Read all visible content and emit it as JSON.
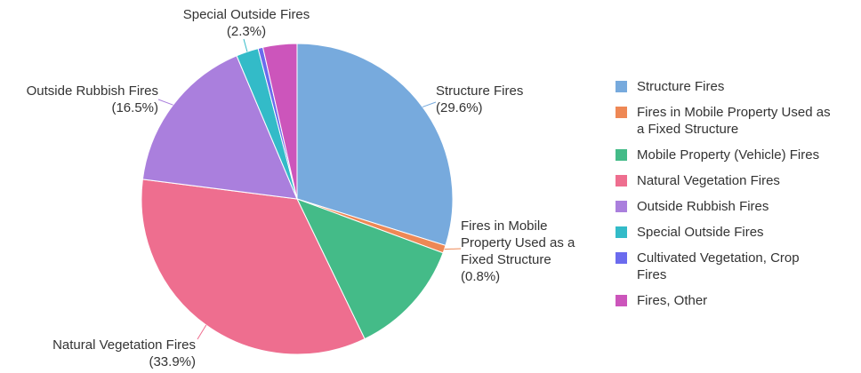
{
  "chart_data": {
    "type": "pie",
    "title": "",
    "series": [
      {
        "name": "Structure Fires",
        "label_lines": [
          "Structure Fires",
          "(29.6%)"
        ],
        "value": 29.6,
        "color": "#77aadd"
      },
      {
        "name": "Fires in Mobile Property Used as a Fixed Structure",
        "label_lines": [
          "Fires in Mobile",
          "Property Used as a",
          "Fixed Structure",
          "(0.8%)"
        ],
        "value": 0.8,
        "color": "#ee8855"
      },
      {
        "name": "Mobile Property (Vehicle) Fires",
        "label_lines": [],
        "value": 12.1,
        "color": "#44bb88"
      },
      {
        "name": "Natural Vegetation Fires",
        "label_lines": [
          "Natural Vegetation Fires",
          "(33.9%)"
        ],
        "value": 33.9,
        "color": "#ee6e8f"
      },
      {
        "name": "Outside Rubbish Fires",
        "label_lines": [
          "Outside Rubbish Fires",
          "(16.5%)"
        ],
        "value": 16.5,
        "color": "#aa7fdd"
      },
      {
        "name": "Special Outside Fires",
        "label_lines": [
          "Special Outside Fires",
          "(2.3%)"
        ],
        "value": 2.3,
        "color": "#33bbc8"
      },
      {
        "name": "Cultivated Vegetation, Crop Fires",
        "label_lines": [],
        "value": 0.5,
        "color": "#6b6bee"
      },
      {
        "name": "Fires, Other",
        "label_lines": [],
        "value": 3.5,
        "color": "#cc55bb"
      }
    ],
    "legend": {
      "position": "right",
      "items": [
        {
          "lines": [
            "Structure Fires"
          ],
          "color": "#77aadd"
        },
        {
          "lines": [
            "Fires in Mobile Property Used as",
            "a Fixed Structure"
          ],
          "color": "#ee8855"
        },
        {
          "lines": [
            "Mobile Property (Vehicle) Fires"
          ],
          "color": "#44bb88"
        },
        {
          "lines": [
            "Natural Vegetation Fires"
          ],
          "color": "#ee6e8f"
        },
        {
          "lines": [
            "Outside Rubbish Fires"
          ],
          "color": "#aa7fdd"
        },
        {
          "lines": [
            "Special Outside Fires"
          ],
          "color": "#33bbc8"
        },
        {
          "lines": [
            "Cultivated Vegetation, Crop",
            "Fires"
          ],
          "color": "#6b6bee"
        },
        {
          "lines": [
            "Fires, Other"
          ],
          "color": "#cc55bb"
        }
      ]
    }
  }
}
